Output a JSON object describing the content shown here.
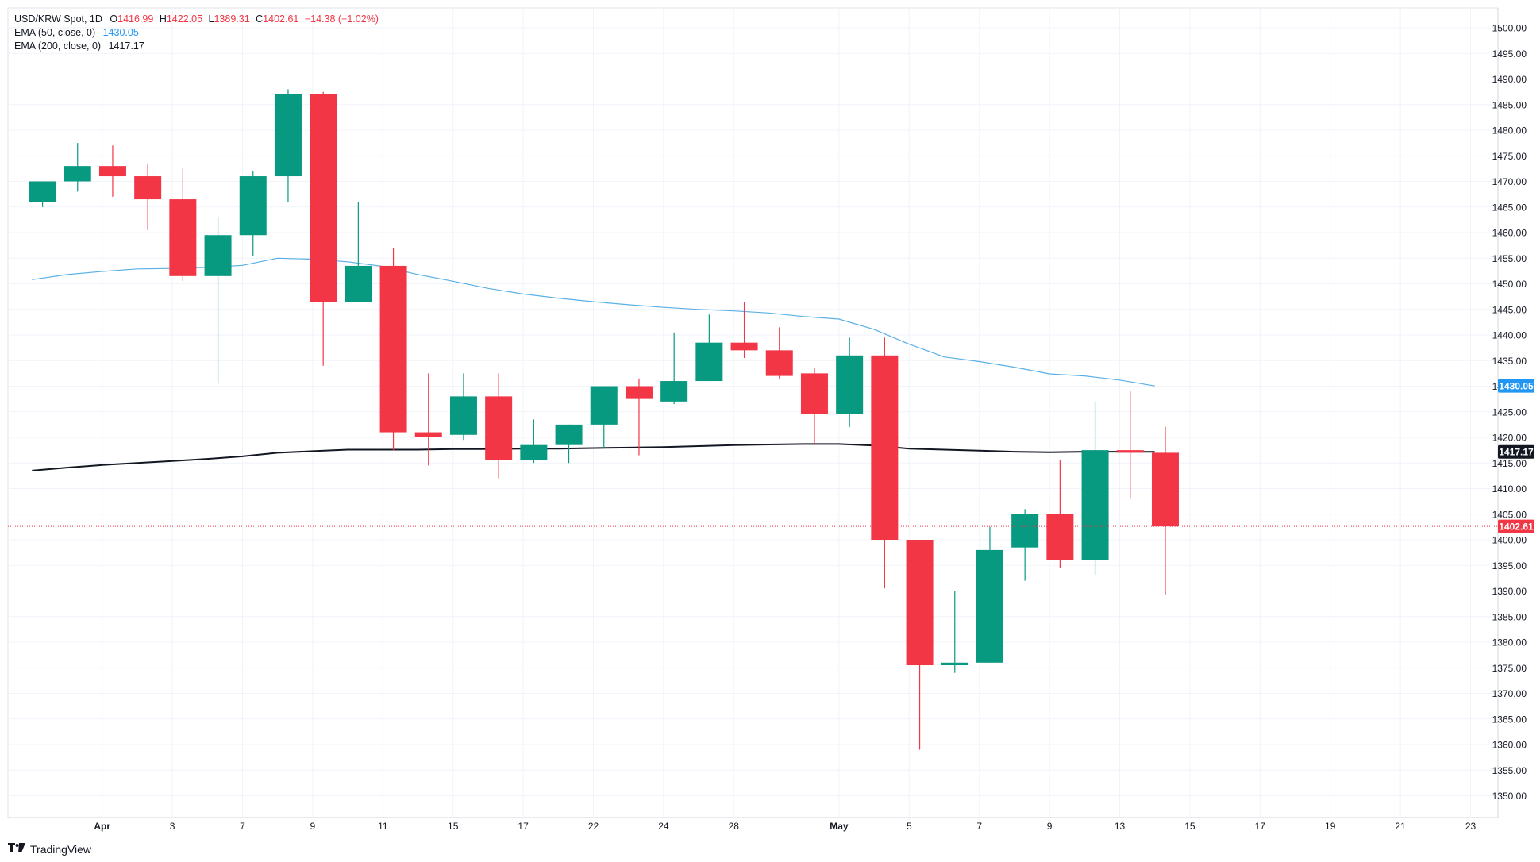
{
  "legend": {
    "symbol": "USD/KRW Spot, 1D",
    "open_label": "O",
    "open": "1416.99",
    "high_label": "H",
    "high": "1422.05",
    "low_label": "L",
    "low": "1389.31",
    "close_label": "C",
    "close": "1402.61",
    "change": "−14.38 (−1.02%)",
    "ema50_label": "EMA (50, close, 0)",
    "ema50_value": "1430.05",
    "ema200_label": "EMA (200, close, 0)",
    "ema200_value": "1417.17"
  },
  "branding": {
    "logo_text": "TradingView",
    "logo_icon": "tradingview-logo-icon"
  },
  "colors": {
    "up": "#089981",
    "down": "#f23645",
    "ema50": "#5ab0e6",
    "ema200": "#131722",
    "grid": "#f0f3fa",
    "price_line": "#f23645"
  },
  "chart_data": {
    "type": "candlestick",
    "y_axis": {
      "min": 1345,
      "max": 1502.5,
      "ticks": [
        1350,
        1355,
        1360,
        1365,
        1370,
        1375,
        1380,
        1385,
        1390,
        1395,
        1400,
        1405,
        1410,
        1415,
        1420,
        1425,
        1430,
        1435,
        1440,
        1445,
        1450,
        1455,
        1460,
        1465,
        1470,
        1475,
        1480,
        1485,
        1490,
        1495,
        1500
      ],
      "tick_format": 2
    },
    "x_axis": {
      "slot_count": 43,
      "ticks": [
        {
          "slot": 1,
          "label": "Apr"
        },
        {
          "slot": 3,
          "label": "3"
        },
        {
          "slot": 5,
          "label": "7"
        },
        {
          "slot": 7,
          "label": "9"
        },
        {
          "slot": 9,
          "label": "11"
        },
        {
          "slot": 11,
          "label": "15"
        },
        {
          "slot": 13,
          "label": "17"
        },
        {
          "slot": 15,
          "label": "22"
        },
        {
          "slot": 17,
          "label": "24"
        },
        {
          "slot": 19,
          "label": "28"
        },
        {
          "slot": 22,
          "label": "May"
        },
        {
          "slot": 24,
          "label": "5"
        },
        {
          "slot": 26,
          "label": "7"
        },
        {
          "slot": 28,
          "label": "9"
        },
        {
          "slot": 30,
          "label": "13"
        },
        {
          "slot": 32,
          "label": "15"
        },
        {
          "slot": 34,
          "label": "17"
        },
        {
          "slot": 36,
          "label": "19"
        },
        {
          "slot": 38,
          "label": "21"
        },
        {
          "slot": 40,
          "label": "23"
        }
      ]
    },
    "candles": [
      {
        "slot": -0.7,
        "o": 1466,
        "h": 1470,
        "l": 1465,
        "c": 1470
      },
      {
        "slot": 0.3,
        "o": 1470,
        "h": 1477.5,
        "l": 1468,
        "c": 1473
      },
      {
        "slot": 1.3,
        "o": 1473,
        "h": 1477,
        "l": 1467,
        "c": 1471
      },
      {
        "slot": 2.3,
        "o": 1471,
        "h": 1473.5,
        "l": 1460.5,
        "c": 1466.5
      },
      {
        "slot": 3.3,
        "o": 1466.5,
        "h": 1472.5,
        "l": 1450.5,
        "c": 1451.5
      },
      {
        "slot": 4.3,
        "o": 1451.5,
        "h": 1463,
        "l": 1430.5,
        "c": 1459.5
      },
      {
        "slot": 5.3,
        "o": 1459.5,
        "h": 1472,
        "l": 1455.5,
        "c": 1471
      },
      {
        "slot": 6.3,
        "o": 1471,
        "h": 1488,
        "l": 1466,
        "c": 1487
      },
      {
        "slot": 7.3,
        "o": 1487,
        "h": 1487.5,
        "l": 1434,
        "c": 1446.5
      },
      {
        "slot": 8.3,
        "o": 1446.5,
        "h": 1466,
        "l": 1446.5,
        "c": 1453.5
      },
      {
        "slot": 9.3,
        "o": 1453.5,
        "h": 1457,
        "l": 1417.5,
        "c": 1421
      },
      {
        "slot": 10.3,
        "o": 1421,
        "h": 1432.5,
        "l": 1414.5,
        "c": 1420
      },
      {
        "slot": 11.3,
        "o": 1420.5,
        "h": 1432.5,
        "l": 1419.5,
        "c": 1428
      },
      {
        "slot": 12.3,
        "o": 1428,
        "h": 1432.5,
        "l": 1412,
        "c": 1415.5
      },
      {
        "slot": 13.3,
        "o": 1415.5,
        "h": 1423.5,
        "l": 1415,
        "c": 1418.5
      },
      {
        "slot": 14.3,
        "o": 1418.5,
        "h": 1422.5,
        "l": 1415,
        "c": 1422.5
      },
      {
        "slot": 15.3,
        "o": 1422.5,
        "h": 1430,
        "l": 1418,
        "c": 1430
      },
      {
        "slot": 16.3,
        "o": 1430,
        "h": 1431.5,
        "l": 1416.5,
        "c": 1427.5
      },
      {
        "slot": 17.3,
        "o": 1427,
        "h": 1440.5,
        "l": 1426.5,
        "c": 1431
      },
      {
        "slot": 18.3,
        "o": 1431,
        "h": 1444,
        "l": 1431,
        "c": 1438.5
      },
      {
        "slot": 19.3,
        "o": 1438.5,
        "h": 1446.5,
        "l": 1435.5,
        "c": 1437
      },
      {
        "slot": 20.3,
        "o": 1437,
        "h": 1441.5,
        "l": 1431.5,
        "c": 1432
      },
      {
        "slot": 21.3,
        "o": 1432.5,
        "h": 1433.5,
        "l": 1418.5,
        "c": 1424.5
      },
      {
        "slot": 22.3,
        "o": 1424.5,
        "h": 1439.5,
        "l": 1422,
        "c": 1436
      },
      {
        "slot": 23.3,
        "o": 1436,
        "h": 1439.5,
        "l": 1390.5,
        "c": 1400
      },
      {
        "slot": 24.3,
        "o": 1400,
        "h": 1400,
        "l": 1359,
        "c": 1375.5
      },
      {
        "slot": 25.3,
        "o": 1375.5,
        "h": 1390,
        "l": 1374,
        "c": 1376
      },
      {
        "slot": 26.3,
        "o": 1376,
        "h": 1402.5,
        "l": 1376,
        "c": 1398
      },
      {
        "slot": 27.3,
        "o": 1398.5,
        "h": 1406,
        "l": 1392,
        "c": 1405
      },
      {
        "slot": 28.3,
        "o": 1405,
        "h": 1415.5,
        "l": 1394.5,
        "c": 1396
      },
      {
        "slot": 29.3,
        "o": 1396,
        "h": 1427,
        "l": 1393,
        "c": 1417.5
      },
      {
        "slot": 30.3,
        "o": 1417.5,
        "h": 1429,
        "l": 1408,
        "c": 1417
      },
      {
        "slot": 31.3,
        "o": 1416.99,
        "h": 1422.05,
        "l": 1389.31,
        "c": 1402.61
      }
    ],
    "ema50": {
      "name": "EMA (50, close, 0)",
      "points": [
        [
          -1,
          1450.8
        ],
        [
          0,
          1451.8
        ],
        [
          1,
          1452.4
        ],
        [
          2,
          1452.9
        ],
        [
          3,
          1453.0
        ],
        [
          4,
          1453.2
        ],
        [
          5,
          1453.6
        ],
        [
          6,
          1455.0
        ],
        [
          7,
          1454.8
        ],
        [
          8,
          1454.3
        ],
        [
          9,
          1453.4
        ],
        [
          10,
          1451.8
        ],
        [
          11,
          1450.5
        ],
        [
          12,
          1449.1
        ],
        [
          13,
          1448.0
        ],
        [
          14,
          1447.2
        ],
        [
          15,
          1446.5
        ],
        [
          16,
          1445.9
        ],
        [
          17,
          1445.4
        ],
        [
          18,
          1445.0
        ],
        [
          19,
          1444.7
        ],
        [
          20,
          1444.3
        ],
        [
          21,
          1443.6
        ],
        [
          22,
          1443.1
        ],
        [
          23,
          1441.1
        ],
        [
          24,
          1438.2
        ],
        [
          25,
          1435.7
        ],
        [
          26,
          1434.8
        ],
        [
          27,
          1433.7
        ],
        [
          28,
          1432.4
        ],
        [
          29,
          1432.0
        ],
        [
          30,
          1431.2
        ],
        [
          31,
          1430.05
        ]
      ]
    },
    "ema200": {
      "name": "EMA (200, close, 0)",
      "points": [
        [
          -1,
          1413.5
        ],
        [
          0,
          1414.1
        ],
        [
          1,
          1414.6
        ],
        [
          2,
          1415.0
        ],
        [
          3,
          1415.4
        ],
        [
          4,
          1415.8
        ],
        [
          5,
          1416.3
        ],
        [
          6,
          1417.0
        ],
        [
          7,
          1417.3
        ],
        [
          8,
          1417.6
        ],
        [
          9,
          1417.6
        ],
        [
          10,
          1417.6
        ],
        [
          11,
          1417.7
        ],
        [
          12,
          1417.7
        ],
        [
          13,
          1417.8
        ],
        [
          14,
          1417.8
        ],
        [
          15,
          1417.9
        ],
        [
          16,
          1418.0
        ],
        [
          17,
          1418.1
        ],
        [
          18,
          1418.3
        ],
        [
          19,
          1418.5
        ],
        [
          20,
          1418.6
        ],
        [
          21,
          1418.7
        ],
        [
          22,
          1418.7
        ],
        [
          23,
          1418.4
        ],
        [
          24,
          1417.8
        ],
        [
          25,
          1417.6
        ],
        [
          26,
          1417.4
        ],
        [
          27,
          1417.2
        ],
        [
          28,
          1417.1
        ],
        [
          29,
          1417.2
        ],
        [
          30,
          1417.2
        ],
        [
          31,
          1417.17
        ]
      ]
    },
    "axis_badges": [
      {
        "label": "1430.05",
        "value": 1430.05,
        "color": "#2196f3",
        "text_color": "#ffffff"
      },
      {
        "label": "1417.17",
        "value": 1417.17,
        "color": "#131722",
        "text_color": "#ffffff"
      },
      {
        "label": "1402.61",
        "value": 1402.61,
        "color": "#f23645",
        "text_color": "#ffffff"
      }
    ],
    "last_price": 1402.61,
    "grid": true
  }
}
